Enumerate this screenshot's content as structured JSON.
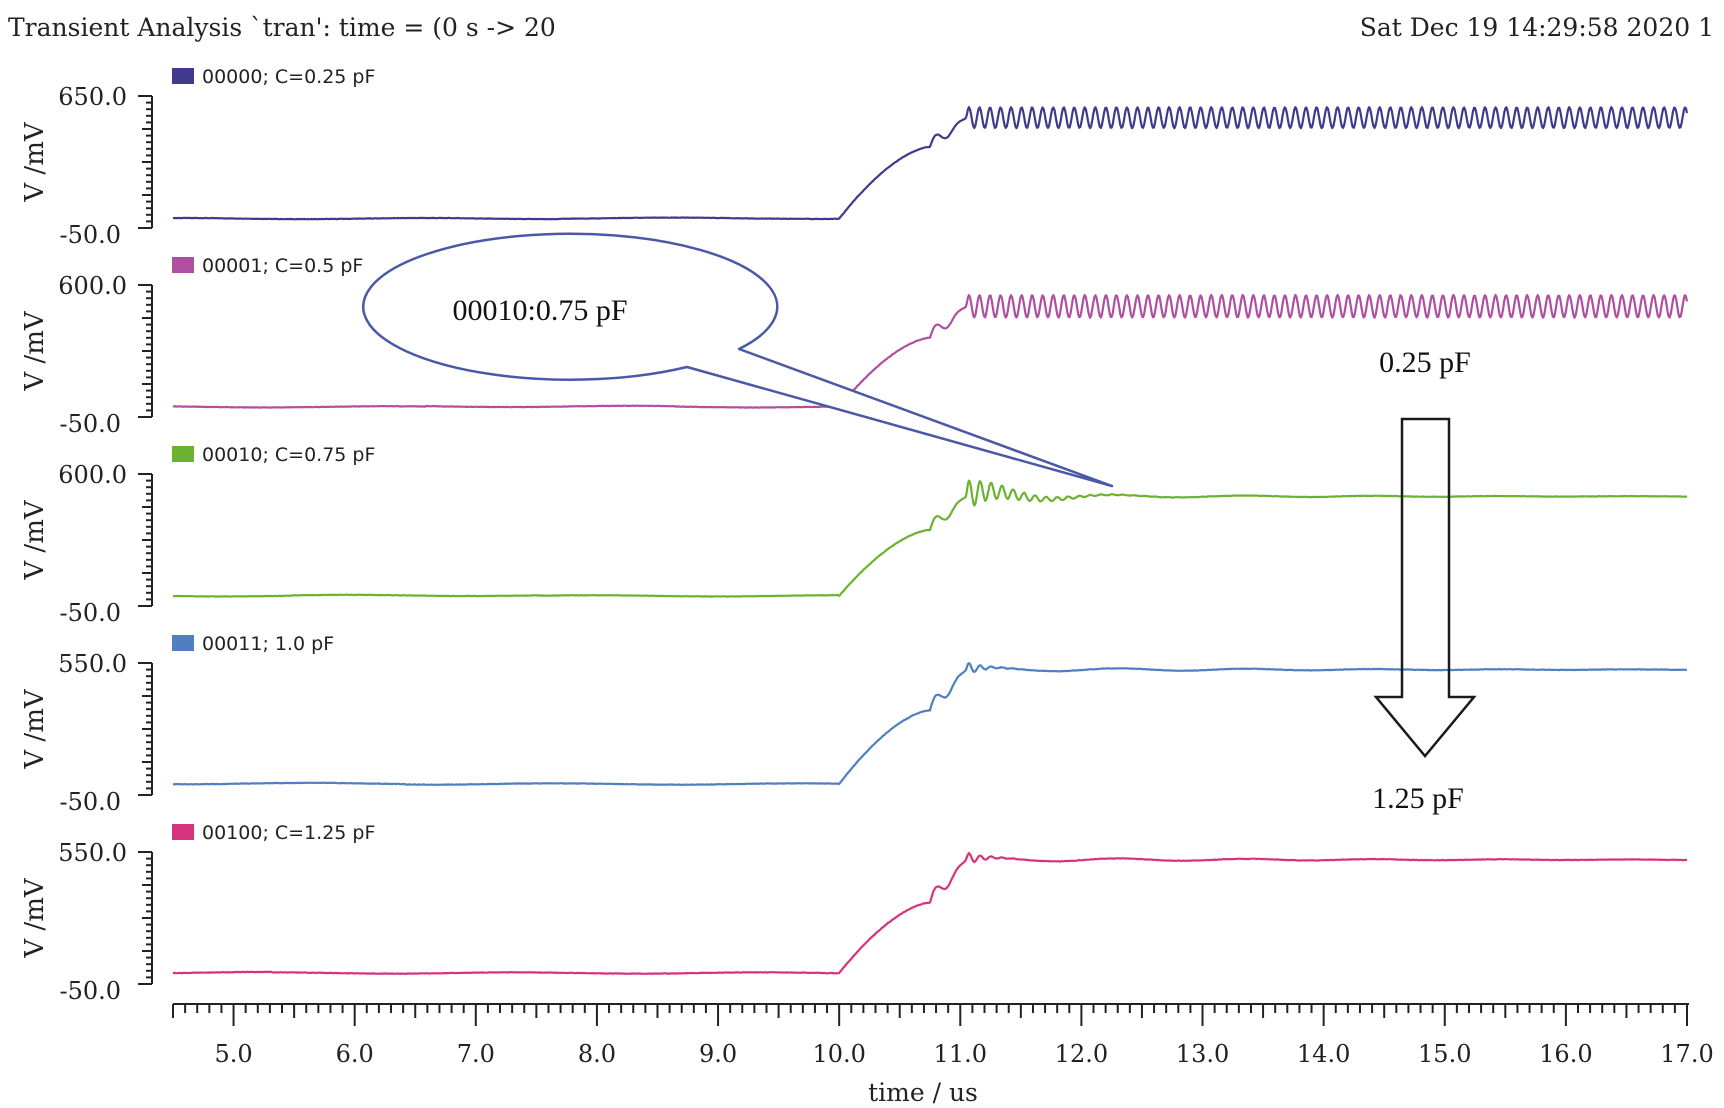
{
  "header": {
    "left": "Transient Analysis `tran': time = (0 s -> 20",
    "right": "Sat Dec 19 14:29:58 2020  1"
  },
  "chart_data": {
    "type": "line",
    "xlabel": "time / us",
    "xlim": [
      4.5,
      17.0
    ],
    "xticks": [
      "5.0",
      "6.0",
      "7.0",
      "8.0",
      "9.0",
      "10.0",
      "11.0",
      "12.0",
      "13.0",
      "14.0",
      "15.0",
      "16.0",
      "17.0"
    ],
    "panels": [
      {
        "name": "00000; C=0.25 pF",
        "color": "#3f3a8e",
        "ylabel": "V /mV",
        "ytick_top": "650.0",
        "ytick_bottom": "-50.0",
        "ylim": [
          -50,
          650
        ],
        "low_mV": 0,
        "plateau_mV": 380,
        "final_mV": 535,
        "osc_amp_mV": 55,
        "settle_tau_us": 0,
        "ringing": "sustained"
      },
      {
        "name": "00001; C=0.5 pF",
        "color": "#b04fa0",
        "ylabel": "V /mV",
        "ytick_top": "600.0",
        "ytick_bottom": "-50.0",
        "ylim": [
          -50,
          600
        ],
        "low_mV": 0,
        "plateau_mV": 340,
        "final_mV": 495,
        "osc_amp_mV": 55,
        "settle_tau_us": 0,
        "ringing": "sustained"
      },
      {
        "name": "00010; C=0.75 pF",
        "color": "#6bb230",
        "ylabel": "V /mV",
        "ytick_top": "600.0",
        "ytick_bottom": "-50.0",
        "ylim": [
          -50,
          600
        ],
        "low_mV": 0,
        "plateau_mV": 325,
        "final_mV": 490,
        "osc_amp_mV": 75,
        "settle_tau_us": 0.35,
        "ringing": "decaying"
      },
      {
        "name": "00011; 1.0 pF",
        "color": "#4f7fc0",
        "ylabel": "V /mV",
        "ytick_top": "550.0",
        "ytick_bottom": "-50.0",
        "ylim": [
          -50,
          550
        ],
        "low_mV": 0,
        "plateau_mV": 335,
        "final_mV": 520,
        "osc_amp_mV": 30,
        "settle_tau_us": 0.12,
        "ringing": "decaying"
      },
      {
        "name": "00100; C=1.25 pF",
        "color": "#d6337e",
        "ylabel": "V /mV",
        "ytick_top": "550.0",
        "ytick_bottom": "-50.0",
        "ylim": [
          -50,
          550
        ],
        "low_mV": 0,
        "plateau_mV": 320,
        "final_mV": 515,
        "osc_amp_mV": 30,
        "settle_tau_us": 0.12,
        "ringing": "decaying"
      }
    ],
    "step_start_us": 10.0,
    "plateau_us": 10.75,
    "step_end_us": 11.05,
    "annotations": {
      "callout": "00010:0.75 pF",
      "arrow_top": "0.25 pF",
      "arrow_bottom": "1.25 pF"
    },
    "callout_color": "#4a58a8"
  }
}
